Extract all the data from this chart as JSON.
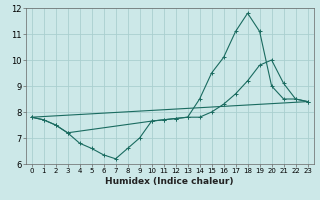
{
  "xlabel": "Humidex (Indice chaleur)",
  "bg_color": "#cce8e8",
  "grid_color": "#aacfcf",
  "line_color": "#1a6b60",
  "xlim": [
    -0.5,
    23.5
  ],
  "ylim": [
    6,
    12
  ],
  "xticks": [
    0,
    1,
    2,
    3,
    4,
    5,
    6,
    7,
    8,
    9,
    10,
    11,
    12,
    13,
    14,
    15,
    16,
    17,
    18,
    19,
    20,
    21,
    22,
    23
  ],
  "yticks": [
    6,
    7,
    8,
    9,
    10,
    11,
    12
  ],
  "line1_x": [
    0,
    1,
    2,
    3,
    4,
    5,
    6,
    7,
    8,
    9,
    10,
    11,
    12,
    13,
    14,
    15,
    16,
    17,
    18,
    19,
    20,
    21,
    22,
    23
  ],
  "line1_y": [
    7.8,
    7.7,
    7.5,
    7.2,
    6.8,
    6.6,
    6.35,
    6.2,
    6.6,
    7.0,
    7.65,
    7.7,
    7.75,
    7.8,
    8.5,
    9.5,
    10.1,
    11.1,
    11.8,
    11.1,
    9.0,
    8.5,
    8.5,
    8.4
  ],
  "line2_x": [
    0,
    1,
    2,
    3,
    10,
    11,
    12,
    13,
    14,
    15,
    16,
    17,
    18,
    19,
    20,
    21,
    22,
    23
  ],
  "line2_y": [
    7.8,
    7.7,
    7.5,
    7.2,
    7.65,
    7.7,
    7.75,
    7.8,
    7.8,
    8.0,
    8.3,
    8.7,
    9.2,
    9.8,
    10.0,
    9.1,
    8.5,
    8.4
  ],
  "line3_x": [
    0,
    23
  ],
  "line3_y": [
    7.8,
    8.4
  ]
}
